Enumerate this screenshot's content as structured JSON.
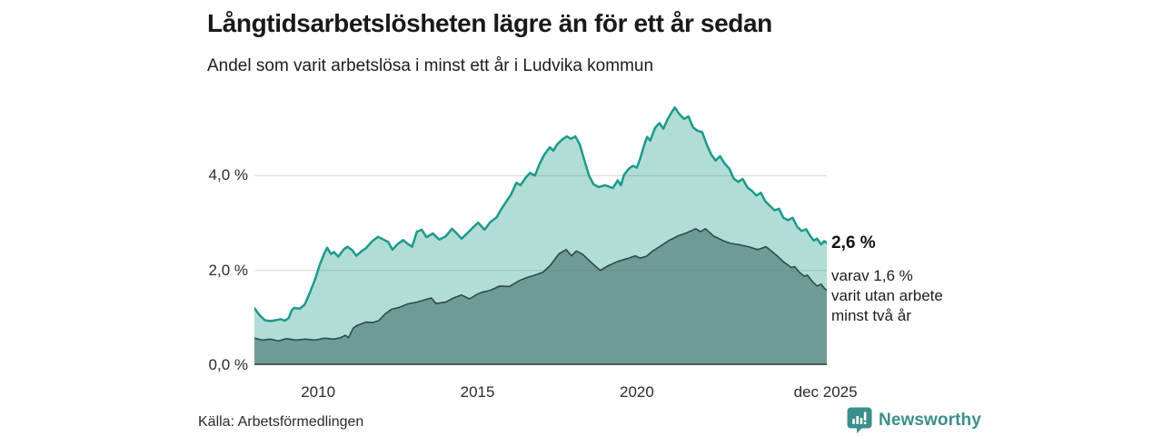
{
  "header": {
    "title": "Långtidsarbetslösheten lägre än för ett år sedan",
    "subtitle": "Andel som varit arbetslösa i minst ett år i Ludvika kommun"
  },
  "chart_data": {
    "type": "area",
    "title": "Långtidsarbetslösheten lägre än för ett år sedan",
    "xlabel": "",
    "ylabel": "",
    "x_range": [
      2008,
      2025.96
    ],
    "y_range": [
      0,
      5.6
    ],
    "grid": true,
    "y_ticks": [
      {
        "value": 4,
        "label": "4,0 %"
      },
      {
        "value": 2,
        "label": "2,0 %"
      },
      {
        "value": 0,
        "label": "0,0 %"
      }
    ],
    "x_ticks": [
      {
        "value": 2010,
        "label": "2010"
      },
      {
        "value": 2015,
        "label": "2015"
      },
      {
        "value": 2020,
        "label": "2020"
      },
      {
        "value": 2025.92,
        "label": "dec 2025"
      }
    ],
    "axis_color": "#4e5d5b",
    "grid_color": "rgba(100,110,110,0.22)",
    "series": [
      {
        "name": "Arbetslösa minst ett år",
        "end_value": 2.6,
        "end_value_label": "2,6 %",
        "line_color": "#1b9a8c",
        "fill_color": "#b2ddd6",
        "line_width": 2.5,
        "points": [
          [
            2008.0,
            1.2
          ],
          [
            2008.17,
            1.05
          ],
          [
            2008.33,
            0.95
          ],
          [
            2008.5,
            0.93
          ],
          [
            2008.67,
            0.95
          ],
          [
            2008.83,
            0.97
          ],
          [
            2008.96,
            0.94
          ],
          [
            2009.08,
            1.0
          ],
          [
            2009.17,
            1.16
          ],
          [
            2009.25,
            1.21
          ],
          [
            2009.42,
            1.19
          ],
          [
            2009.58,
            1.28
          ],
          [
            2009.75,
            1.55
          ],
          [
            2009.9,
            1.8
          ],
          [
            2010.05,
            2.12
          ],
          [
            2010.17,
            2.32
          ],
          [
            2010.28,
            2.48
          ],
          [
            2010.4,
            2.35
          ],
          [
            2010.5,
            2.39
          ],
          [
            2010.63,
            2.29
          ],
          [
            2010.8,
            2.44
          ],
          [
            2010.92,
            2.5
          ],
          [
            2011.08,
            2.42
          ],
          [
            2011.2,
            2.31
          ],
          [
            2011.35,
            2.4
          ],
          [
            2011.5,
            2.47
          ],
          [
            2011.7,
            2.62
          ],
          [
            2011.88,
            2.71
          ],
          [
            2012.05,
            2.65
          ],
          [
            2012.2,
            2.6
          ],
          [
            2012.33,
            2.44
          ],
          [
            2012.5,
            2.56
          ],
          [
            2012.67,
            2.64
          ],
          [
            2012.83,
            2.55
          ],
          [
            2012.95,
            2.5
          ],
          [
            2013.1,
            2.82
          ],
          [
            2013.25,
            2.86
          ],
          [
            2013.4,
            2.7
          ],
          [
            2013.6,
            2.78
          ],
          [
            2013.8,
            2.65
          ],
          [
            2014.0,
            2.72
          ],
          [
            2014.2,
            2.88
          ],
          [
            2014.35,
            2.78
          ],
          [
            2014.5,
            2.67
          ],
          [
            2014.7,
            2.8
          ],
          [
            2014.88,
            2.92
          ],
          [
            2015.02,
            3.01
          ],
          [
            2015.22,
            2.86
          ],
          [
            2015.4,
            3.02
          ],
          [
            2015.6,
            3.12
          ],
          [
            2015.75,
            3.3
          ],
          [
            2015.9,
            3.45
          ],
          [
            2016.05,
            3.6
          ],
          [
            2016.22,
            3.85
          ],
          [
            2016.35,
            3.8
          ],
          [
            2016.5,
            3.95
          ],
          [
            2016.65,
            4.06
          ],
          [
            2016.8,
            4.0
          ],
          [
            2016.95,
            4.25
          ],
          [
            2017.1,
            4.45
          ],
          [
            2017.27,
            4.6
          ],
          [
            2017.38,
            4.53
          ],
          [
            2017.5,
            4.66
          ],
          [
            2017.65,
            4.76
          ],
          [
            2017.8,
            4.83
          ],
          [
            2017.93,
            4.78
          ],
          [
            2018.07,
            4.83
          ],
          [
            2018.21,
            4.66
          ],
          [
            2018.35,
            4.33
          ],
          [
            2018.5,
            4.0
          ],
          [
            2018.64,
            3.82
          ],
          [
            2018.8,
            3.76
          ],
          [
            2019.0,
            3.8
          ],
          [
            2019.25,
            3.74
          ],
          [
            2019.4,
            3.9
          ],
          [
            2019.5,
            3.8
          ],
          [
            2019.6,
            4.02
          ],
          [
            2019.75,
            4.15
          ],
          [
            2019.88,
            4.21
          ],
          [
            2020.0,
            4.17
          ],
          [
            2020.1,
            4.35
          ],
          [
            2020.22,
            4.63
          ],
          [
            2020.32,
            4.82
          ],
          [
            2020.42,
            4.74
          ],
          [
            2020.57,
            5.01
          ],
          [
            2020.71,
            5.11
          ],
          [
            2020.83,
            4.99
          ],
          [
            2020.97,
            5.2
          ],
          [
            2021.11,
            5.36
          ],
          [
            2021.19,
            5.44
          ],
          [
            2021.33,
            5.3
          ],
          [
            2021.48,
            5.2
          ],
          [
            2021.62,
            5.25
          ],
          [
            2021.76,
            5.02
          ],
          [
            2021.9,
            4.95
          ],
          [
            2022.05,
            4.92
          ],
          [
            2022.19,
            4.66
          ],
          [
            2022.33,
            4.45
          ],
          [
            2022.47,
            4.32
          ],
          [
            2022.61,
            4.41
          ],
          [
            2022.76,
            4.25
          ],
          [
            2022.9,
            4.15
          ],
          [
            2023.04,
            3.94
          ],
          [
            2023.18,
            3.87
          ],
          [
            2023.32,
            3.93
          ],
          [
            2023.47,
            3.75
          ],
          [
            2023.61,
            3.68
          ],
          [
            2023.75,
            3.58
          ],
          [
            2023.89,
            3.64
          ],
          [
            2024.03,
            3.46
          ],
          [
            2024.18,
            3.36
          ],
          [
            2024.32,
            3.27
          ],
          [
            2024.46,
            3.3
          ],
          [
            2024.6,
            3.11
          ],
          [
            2024.74,
            3.06
          ],
          [
            2024.89,
            3.11
          ],
          [
            2025.03,
            2.92
          ],
          [
            2025.17,
            2.83
          ],
          [
            2025.31,
            2.87
          ],
          [
            2025.45,
            2.72
          ],
          [
            2025.55,
            2.63
          ],
          [
            2025.65,
            2.67
          ],
          [
            2025.78,
            2.55
          ],
          [
            2025.88,
            2.62
          ],
          [
            2025.96,
            2.58
          ]
        ]
      },
      {
        "name": "varav utan arbete minst två år",
        "end_value": 1.6,
        "end_value_label": "1,6 %",
        "line_color": "#2e4b47",
        "fill_color": "#6f9b96",
        "line_width": 1.6,
        "points": [
          [
            2008.0,
            0.57
          ],
          [
            2008.25,
            0.53
          ],
          [
            2008.5,
            0.55
          ],
          [
            2008.75,
            0.51
          ],
          [
            2009.0,
            0.56
          ],
          [
            2009.3,
            0.53
          ],
          [
            2009.6,
            0.55
          ],
          [
            2009.9,
            0.53
          ],
          [
            2010.2,
            0.57
          ],
          [
            2010.5,
            0.55
          ],
          [
            2010.7,
            0.58
          ],
          [
            2010.85,
            0.63
          ],
          [
            2010.95,
            0.58
          ],
          [
            2011.1,
            0.78
          ],
          [
            2011.22,
            0.84
          ],
          [
            2011.35,
            0.87
          ],
          [
            2011.5,
            0.91
          ],
          [
            2011.7,
            0.9
          ],
          [
            2011.9,
            0.94
          ],
          [
            2012.1,
            1.08
          ],
          [
            2012.3,
            1.18
          ],
          [
            2012.55,
            1.22
          ],
          [
            2012.8,
            1.29
          ],
          [
            2013.1,
            1.33
          ],
          [
            2013.4,
            1.39
          ],
          [
            2013.55,
            1.42
          ],
          [
            2013.7,
            1.3
          ],
          [
            2014.0,
            1.33
          ],
          [
            2014.25,
            1.42
          ],
          [
            2014.5,
            1.48
          ],
          [
            2014.75,
            1.4
          ],
          [
            2015.0,
            1.5
          ],
          [
            2015.15,
            1.54
          ],
          [
            2015.4,
            1.58
          ],
          [
            2015.7,
            1.67
          ],
          [
            2016.0,
            1.66
          ],
          [
            2016.3,
            1.78
          ],
          [
            2016.55,
            1.85
          ],
          [
            2016.8,
            1.9
          ],
          [
            2017.05,
            1.96
          ],
          [
            2017.3,
            2.12
          ],
          [
            2017.55,
            2.35
          ],
          [
            2017.78,
            2.44
          ],
          [
            2017.95,
            2.31
          ],
          [
            2018.1,
            2.41
          ],
          [
            2018.3,
            2.34
          ],
          [
            2018.6,
            2.15
          ],
          [
            2018.85,
            2.0
          ],
          [
            2019.1,
            2.1
          ],
          [
            2019.4,
            2.19
          ],
          [
            2019.7,
            2.25
          ],
          [
            2019.95,
            2.31
          ],
          [
            2020.1,
            2.26
          ],
          [
            2020.3,
            2.3
          ],
          [
            2020.5,
            2.41
          ],
          [
            2020.8,
            2.54
          ],
          [
            2021.0,
            2.63
          ],
          [
            2021.3,
            2.73
          ],
          [
            2021.55,
            2.79
          ],
          [
            2021.85,
            2.88
          ],
          [
            2022.0,
            2.82
          ],
          [
            2022.15,
            2.88
          ],
          [
            2022.4,
            2.73
          ],
          [
            2022.7,
            2.63
          ],
          [
            2022.95,
            2.57
          ],
          [
            2023.25,
            2.54
          ],
          [
            2023.5,
            2.5
          ],
          [
            2023.8,
            2.44
          ],
          [
            2024.05,
            2.5
          ],
          [
            2024.2,
            2.42
          ],
          [
            2024.4,
            2.31
          ],
          [
            2024.6,
            2.18
          ],
          [
            2024.75,
            2.11
          ],
          [
            2024.85,
            2.06
          ],
          [
            2024.95,
            2.08
          ],
          [
            2025.1,
            1.96
          ],
          [
            2025.25,
            1.88
          ],
          [
            2025.35,
            1.9
          ],
          [
            2025.5,
            1.77
          ],
          [
            2025.65,
            1.67
          ],
          [
            2025.78,
            1.71
          ],
          [
            2025.9,
            1.61
          ],
          [
            2025.96,
            1.58
          ]
        ]
      }
    ],
    "annotation": {
      "headline": "2,6 %",
      "lines": [
        "varav 1,6 %",
        "varit utan arbete",
        "minst två år"
      ]
    }
  },
  "footer": {
    "source": "Källa: Arbetsförmedlingen",
    "brand": "Newsworthy"
  },
  "colors": {
    "accent_teal": "#1b9a8c",
    "light_fill": "#b2ddd6",
    "dark_fill": "#6f9b96",
    "brand_teal": "#3c8e8b"
  }
}
